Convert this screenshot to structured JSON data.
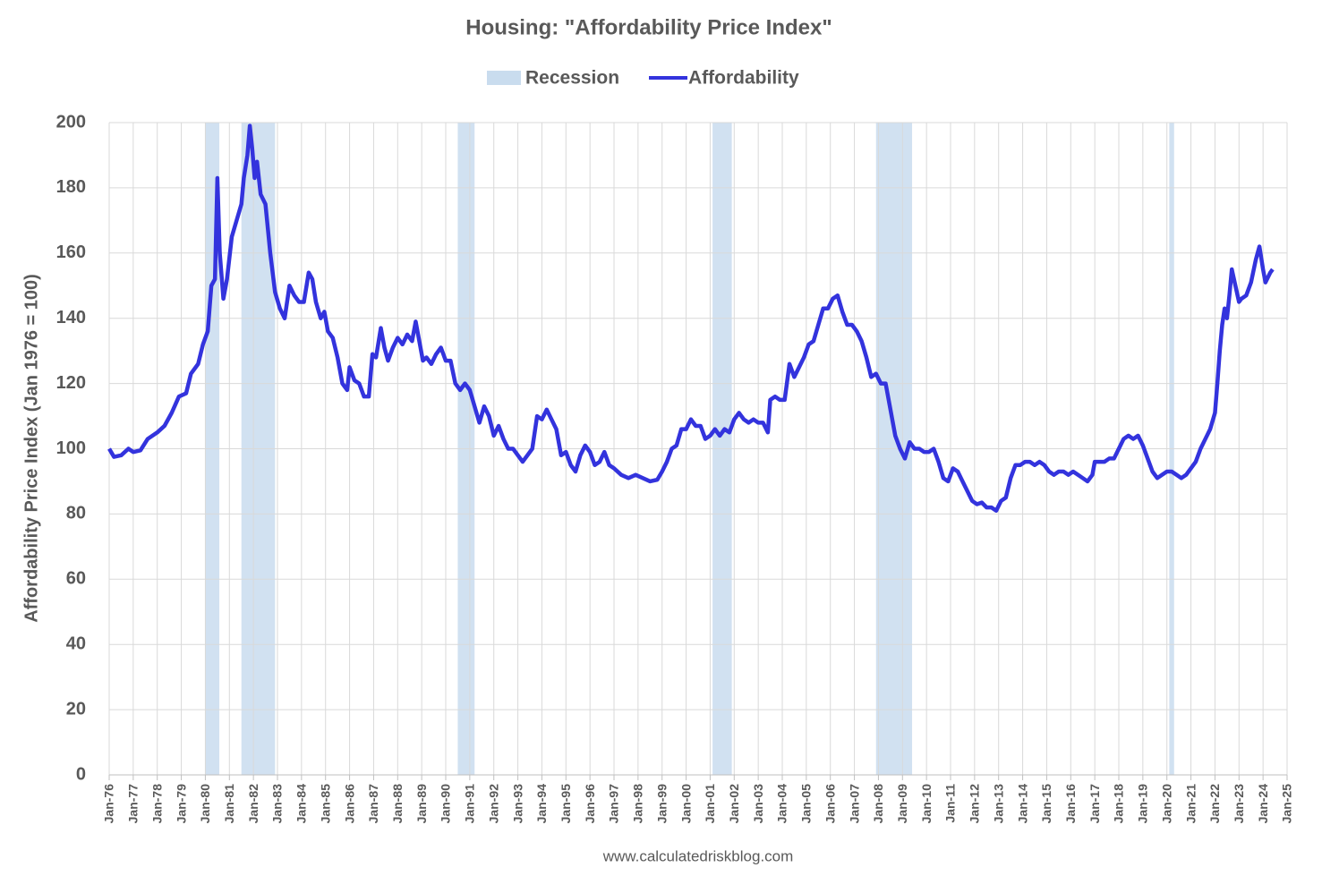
{
  "chart_data": {
    "type": "line",
    "title": "Housing: \"Affordability Price Index\"",
    "y_label": "Affordability Price Index (Jan 1976 = 100)",
    "source": "www.calculatedriskblog.com",
    "grid": true,
    "legend": "top",
    "recession": {
      "name": "Recession",
      "color": "#c9dcee",
      "spans": [
        [
          1980.0,
          1980.58
        ],
        [
          1981.5,
          1982.9
        ],
        [
          1990.5,
          1991.2
        ],
        [
          2001.1,
          2001.9
        ],
        [
          2007.9,
          2009.4
        ],
        [
          2020.1,
          2020.3
        ]
      ]
    },
    "xlim": [
      1976,
      2025
    ],
    "xticks": [
      {
        "value": 1976,
        "label": "Jan-76"
      },
      {
        "value": 1977,
        "label": "Jan-77"
      },
      {
        "value": 1978,
        "label": "Jan-78"
      },
      {
        "value": 1979,
        "label": "Jan-79"
      },
      {
        "value": 1980,
        "label": "Jan-80"
      },
      {
        "value": 1981,
        "label": "Jan-81"
      },
      {
        "value": 1982,
        "label": "Jan-82"
      },
      {
        "value": 1983,
        "label": "Jan-83"
      },
      {
        "value": 1984,
        "label": "Jan-84"
      },
      {
        "value": 1985,
        "label": "Jan-85"
      },
      {
        "value": 1986,
        "label": "Jan-86"
      },
      {
        "value": 1987,
        "label": "Jan-87"
      },
      {
        "value": 1988,
        "label": "Jan-88"
      },
      {
        "value": 1989,
        "label": "Jan-89"
      },
      {
        "value": 1990,
        "label": "Jan-90"
      },
      {
        "value": 1991,
        "label": "Jan-91"
      },
      {
        "value": 1992,
        "label": "Jan-92"
      },
      {
        "value": 1993,
        "label": "Jan-93"
      },
      {
        "value": 1994,
        "label": "Jan-94"
      },
      {
        "value": 1995,
        "label": "Jan-95"
      },
      {
        "value": 1996,
        "label": "Jan-96"
      },
      {
        "value": 1997,
        "label": "Jan-97"
      },
      {
        "value": 1998,
        "label": "Jan-98"
      },
      {
        "value": 1999,
        "label": "Jan-99"
      },
      {
        "value": 2000,
        "label": "Jan-00"
      },
      {
        "value": 2001,
        "label": "Jan-01"
      },
      {
        "value": 2002,
        "label": "Jan-02"
      },
      {
        "value": 2003,
        "label": "Jan-03"
      },
      {
        "value": 2004,
        "label": "Jan-04"
      },
      {
        "value": 2005,
        "label": "Jan-05"
      },
      {
        "value": 2006,
        "label": "Jan-06"
      },
      {
        "value": 2007,
        "label": "Jan-07"
      },
      {
        "value": 2008,
        "label": "Jan-08"
      },
      {
        "value": 2009,
        "label": "Jan-09"
      },
      {
        "value": 2010,
        "label": "Jan-10"
      },
      {
        "value": 2011,
        "label": "Jan-11"
      },
      {
        "value": 2012,
        "label": "Jan-12"
      },
      {
        "value": 2013,
        "label": "Jan-13"
      },
      {
        "value": 2014,
        "label": "Jan-14"
      },
      {
        "value": 2015,
        "label": "Jan-15"
      },
      {
        "value": 2016,
        "label": "Jan-16"
      },
      {
        "value": 2017,
        "label": "Jan-17"
      },
      {
        "value": 2018,
        "label": "Jan-18"
      },
      {
        "value": 2019,
        "label": "Jan-19"
      },
      {
        "value": 2020,
        "label": "Jan-20"
      },
      {
        "value": 2021,
        "label": "Jan-21"
      },
      {
        "value": 2022,
        "label": "Jan-22"
      },
      {
        "value": 2023,
        "label": "Jan-23"
      },
      {
        "value": 2024,
        "label": "Jan-24"
      },
      {
        "value": 2025,
        "label": "Jan-25"
      }
    ],
    "ylim": [
      0,
      200
    ],
    "yticks": [
      0,
      20,
      40,
      60,
      80,
      100,
      120,
      140,
      160,
      180,
      200
    ],
    "x": [
      1976.0,
      1976.2,
      1976.5,
      1976.8,
      1977.0,
      1977.3,
      1977.6,
      1978.0,
      1978.3,
      1978.6,
      1978.9,
      1979.2,
      1979.4,
      1979.7,
      1979.9,
      1980.1,
      1980.25,
      1980.4,
      1980.5,
      1980.6,
      1980.75,
      1980.9,
      1981.1,
      1981.3,
      1981.5,
      1981.6,
      1981.75,
      1981.85,
      1981.95,
      1982.05,
      1982.15,
      1982.3,
      1982.5,
      1982.7,
      1982.9,
      1983.1,
      1983.3,
      1983.5,
      1983.7,
      1983.9,
      1984.1,
      1984.3,
      1984.45,
      1984.6,
      1984.8,
      1984.95,
      1985.1,
      1985.3,
      1985.5,
      1985.7,
      1985.9,
      1986.0,
      1986.2,
      1986.4,
      1986.6,
      1986.8,
      1986.95,
      1987.1,
      1987.3,
      1987.45,
      1987.6,
      1987.8,
      1988.0,
      1988.2,
      1988.4,
      1988.6,
      1988.75,
      1988.9,
      1989.05,
      1989.2,
      1989.4,
      1989.6,
      1989.8,
      1990.0,
      1990.2,
      1990.4,
      1990.6,
      1990.8,
      1991.0,
      1991.2,
      1991.4,
      1991.6,
      1991.8,
      1992.0,
      1992.2,
      1992.4,
      1992.6,
      1992.8,
      1993.0,
      1993.2,
      1993.4,
      1993.6,
      1993.8,
      1994.0,
      1994.2,
      1994.4,
      1994.6,
      1994.8,
      1995.0,
      1995.2,
      1995.4,
      1995.6,
      1995.8,
      1996.0,
      1996.2,
      1996.4,
      1996.6,
      1996.8,
      1997.0,
      1997.3,
      1997.6,
      1997.9,
      1998.2,
      1998.5,
      1998.8,
      1999.0,
      1999.2,
      1999.4,
      1999.6,
      1999.8,
      2000.0,
      2000.2,
      2000.4,
      2000.6,
      2000.8,
      2001.0,
      2001.2,
      2001.4,
      2001.6,
      2001.8,
      2002.0,
      2002.2,
      2002.4,
      2002.6,
      2002.8,
      2003.0,
      2003.2,
      2003.4,
      2003.5,
      2003.7,
      2003.9,
      2004.1,
      2004.3,
      2004.5,
      2004.7,
      2004.9,
      2005.1,
      2005.3,
      2005.5,
      2005.7,
      2005.9,
      2006.1,
      2006.3,
      2006.5,
      2006.7,
      2006.9,
      2007.1,
      2007.3,
      2007.5,
      2007.7,
      2007.9,
      2008.1,
      2008.3,
      2008.5,
      2008.7,
      2008.9,
      2009.1,
      2009.3,
      2009.5,
      2009.7,
      2009.9,
      2010.1,
      2010.3,
      2010.5,
      2010.7,
      2010.9,
      2011.1,
      2011.3,
      2011.5,
      2011.7,
      2011.9,
      2012.1,
      2012.3,
      2012.5,
      2012.7,
      2012.9,
      2013.1,
      2013.3,
      2013.5,
      2013.7,
      2013.9,
      2014.1,
      2014.3,
      2014.5,
      2014.7,
      2014.9,
      2015.1,
      2015.3,
      2015.5,
      2015.7,
      2015.9,
      2016.1,
      2016.3,
      2016.5,
      2016.7,
      2016.9,
      2017.0,
      2017.2,
      2017.4,
      2017.6,
      2017.8,
      2018.0,
      2018.2,
      2018.4,
      2018.6,
      2018.8,
      2019.0,
      2019.2,
      2019.4,
      2019.6,
      2019.8,
      2020.0,
      2020.2,
      2020.4,
      2020.6,
      2020.8,
      2021.0,
      2021.2,
      2021.4,
      2021.6,
      2021.8,
      2022.0,
      2022.1,
      2022.2,
      2022.3,
      2022.4,
      2022.5,
      2022.6,
      2022.7,
      2022.85,
      2023.0,
      2023.1,
      2023.3,
      2023.5,
      2023.7,
      2023.85,
      2024.0,
      2024.1,
      2024.3,
      2024.4
    ],
    "series": [
      {
        "name": "Affordability",
        "color": "#3333dd",
        "values": [
          100,
          97.5,
          98,
          100,
          99,
          99.5,
          103,
          105,
          107,
          111,
          116,
          117,
          123,
          126,
          132,
          136,
          150,
          152,
          183,
          160,
          146,
          152,
          165,
          170,
          175,
          183,
          190,
          199,
          192,
          183,
          188,
          178,
          175,
          160,
          148,
          143,
          140,
          150,
          147,
          145,
          145,
          154,
          152,
          145,
          140,
          142,
          136,
          134,
          128,
          120,
          118,
          125,
          121,
          120,
          116,
          116,
          129,
          128,
          137,
          131,
          127,
          131,
          134,
          132,
          135,
          133,
          139,
          133,
          127,
          128,
          126,
          129,
          131,
          127,
          127,
          120,
          118,
          120,
          118,
          113,
          108,
          113,
          110,
          104,
          107,
          103,
          100,
          100,
          98,
          96,
          98,
          100,
          110,
          109,
          112,
          109,
          106,
          98,
          99,
          95,
          93,
          98,
          101,
          99,
          95,
          96,
          99,
          95,
          94,
          92,
          91,
          92,
          91,
          90,
          90.5,
          93,
          96,
          100,
          101,
          106,
          106,
          109,
          107,
          107,
          103,
          104,
          106,
          104,
          106,
          105,
          109,
          111,
          109,
          108,
          109,
          108,
          108,
          105,
          115,
          116,
          115,
          115,
          126,
          122,
          125,
          128,
          132,
          133,
          138,
          143,
          143,
          146,
          147,
          142,
          138,
          138,
          136,
          133,
          128,
          122,
          123,
          120,
          120,
          112,
          104,
          100,
          97,
          102,
          100,
          100,
          99,
          99,
          100,
          96,
          91,
          90,
          94,
          93,
          90,
          87,
          84,
          83,
          83.5,
          82,
          82,
          81,
          84,
          85,
          91,
          95,
          95,
          96,
          96,
          95,
          96,
          95,
          93,
          92,
          93,
          93,
          92,
          93,
          92,
          91,
          90,
          92,
          96,
          96,
          96,
          97,
          97,
          100,
          103,
          104,
          103,
          104,
          101,
          97,
          93,
          91,
          92,
          93,
          93,
          92,
          91,
          92,
          94,
          96,
          100,
          103,
          106,
          111,
          120,
          130,
          138,
          143,
          140,
          147,
          155,
          150,
          145,
          146,
          147,
          151,
          158,
          162,
          155,
          151,
          154,
          155
        ]
      }
    ]
  }
}
